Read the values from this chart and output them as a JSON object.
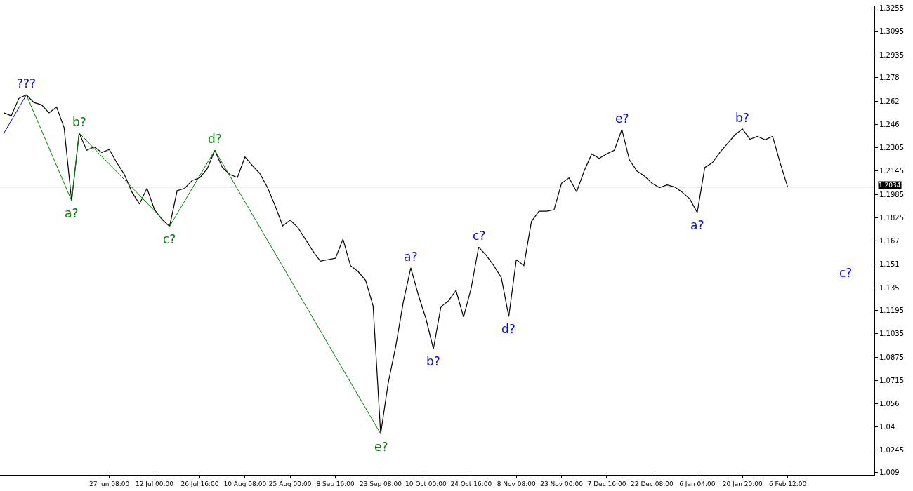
{
  "chart_data": {
    "type": "line",
    "grid": false,
    "marker": "none",
    "categories": [
      null,
      null,
      null,
      null,
      null,
      null,
      null,
      null,
      null,
      null,
      null,
      null,
      null,
      null,
      "27 Jun 08:00",
      null,
      null,
      null,
      null,
      null,
      "12 Jul 00:00",
      null,
      null,
      null,
      null,
      null,
      "26 Jul 16:00",
      null,
      null,
      null,
      null,
      null,
      "10 Aug 08:00",
      null,
      null,
      null,
      null,
      null,
      "25 Aug 00:00",
      null,
      null,
      null,
      null,
      null,
      "8 Sep 16:00",
      null,
      null,
      null,
      null,
      null,
      "23 Sep 08:00",
      null,
      null,
      null,
      null,
      null,
      "10 Oct 00:00",
      null,
      null,
      null,
      null,
      null,
      "24 Oct 16:00",
      null,
      null,
      null,
      null,
      null,
      "8 Nov 08:00",
      null,
      null,
      null,
      null,
      null,
      "23 Nov 00:00",
      null,
      null,
      null,
      null,
      null,
      "7 Dec 16:00",
      null,
      null,
      null,
      null,
      null,
      "22 Dec 08:00",
      null,
      null,
      null,
      null,
      null,
      "6 Jan 04:00",
      null,
      null,
      null,
      null,
      null,
      "20 Jan 20:00",
      null,
      null,
      null,
      null,
      null,
      "6 Feb 12:00",
      null,
      null,
      null,
      null,
      null,
      null,
      null,
      null,
      null,
      null,
      null
    ],
    "ylim": [
      1.0075,
      1.327
    ],
    "yticks": [
      1.3255,
      1.3095,
      1.2935,
      1.278,
      1.262,
      1.246,
      1.2305,
      1.2145,
      1.1985,
      1.1825,
      1.167,
      1.151,
      1.135,
      1.1195,
      1.1035,
      1.0875,
      1.0715,
      1.056,
      1.04,
      1.0245,
      1.009
    ],
    "series": [
      {
        "color": "#000000",
        "values": [
          1.254,
          1.252,
          1.2638,
          1.2662,
          1.261,
          1.2595,
          1.254,
          1.258,
          1.244,
          1.1941,
          1.2403,
          1.2285,
          1.2308,
          1.227,
          1.229,
          1.22,
          1.212,
          1.2,
          1.192,
          1.2026,
          1.188,
          1.1814,
          1.1767,
          1.201,
          1.2026,
          1.208,
          1.2097,
          1.216,
          1.2285,
          1.2167,
          1.212,
          1.21,
          1.224,
          1.218,
          1.2125,
          1.203,
          1.1908,
          1.177,
          1.181,
          1.176,
          1.168,
          1.16,
          1.153,
          1.154,
          1.155,
          1.168,
          1.15,
          1.146,
          1.14,
          1.1225,
          1.0354,
          1.07,
          1.095,
          1.125,
          1.1484,
          1.13,
          1.114,
          1.0933,
          1.122,
          1.126,
          1.133,
          1.115,
          1.1343,
          1.1626,
          1.157,
          1.15,
          1.142,
          1.1154,
          1.154,
          1.15,
          1.18,
          1.187,
          1.187,
          1.188,
          1.206,
          1.2097,
          1.2002,
          1.2144,
          1.226,
          1.223,
          1.2261,
          1.2285,
          1.2426,
          1.222,
          1.2144,
          1.211,
          1.206,
          1.203,
          1.2049,
          1.2035,
          1.2,
          1.1955,
          1.1861,
          1.2167,
          1.22,
          1.227,
          1.233,
          1.239,
          1.243,
          1.236,
          1.238,
          1.2356,
          1.238,
          1.22,
          1.2034,
          null,
          null,
          null,
          null,
          null,
          null,
          null,
          null,
          null,
          null,
          null
        ]
      },
      {
        "color": "#0000ff",
        "values": [
          1.24,
          null,
          null,
          1.2662,
          null,
          null,
          null,
          null,
          null,
          null,
          null,
          null,
          null,
          null,
          null,
          null,
          null,
          null,
          null,
          null,
          null,
          null,
          null,
          null,
          null,
          null,
          null,
          null,
          null,
          null,
          null,
          null,
          null,
          null,
          null,
          null,
          null,
          null,
          null,
          null,
          null,
          null,
          null,
          null,
          null,
          null,
          null,
          null,
          null,
          null,
          null,
          null,
          null,
          null,
          null,
          null,
          null,
          null,
          null,
          null,
          null,
          null,
          null,
          null,
          null,
          null,
          null,
          null,
          null,
          null,
          null,
          null,
          null,
          null,
          null,
          null,
          null,
          null,
          null,
          null,
          null,
          null,
          null,
          null,
          null,
          null,
          null,
          null,
          null,
          null,
          null,
          null,
          null,
          null,
          null,
          null,
          null,
          null,
          null,
          null,
          null,
          null,
          null,
          null,
          null,
          null,
          null,
          null,
          null,
          null,
          null,
          null,
          null,
          null,
          null,
          null
        ]
      },
      {
        "color": "#008000",
        "values": [
          null,
          null,
          null,
          1.2662,
          null,
          null,
          null,
          null,
          null,
          1.1941,
          1.2403,
          null,
          null,
          null,
          null,
          null,
          null,
          null,
          null,
          null,
          null,
          null,
          1.1767,
          null,
          null,
          null,
          null,
          null,
          1.2285,
          null,
          null,
          null,
          null,
          null,
          null,
          null,
          null,
          null,
          null,
          null,
          null,
          null,
          null,
          null,
          null,
          null,
          null,
          null,
          null,
          null,
          1.0354,
          null,
          null,
          null,
          null,
          null,
          null,
          null,
          null,
          null,
          null,
          null,
          null,
          null,
          null,
          null,
          null,
          null,
          null,
          null,
          null,
          null,
          null,
          null,
          null,
          null,
          null,
          null,
          null,
          null,
          null,
          null,
          null,
          null,
          null,
          null,
          null,
          null,
          null,
          null,
          null,
          null,
          null,
          null,
          null,
          null,
          null,
          null,
          null,
          null,
          null,
          null,
          null,
          null,
          null,
          null,
          null,
          null,
          null,
          null,
          null,
          null,
          null,
          null,
          null,
          null
        ]
      }
    ],
    "ref_lines": [
      {
        "axis": "y",
        "value": 1.2034,
        "label": "1.2034",
        "color": "#c0c0c0"
      }
    ],
    "annotations": [
      {
        "text": "???",
        "y": 1.2662
      },
      {
        "text": "a?",
        "y": 1.1941
      },
      {
        "text": "b?",
        "y": 1.2403
      },
      {
        "text": "c?",
        "y": 1.1767
      },
      {
        "text": "d?",
        "y": 1.2285
      },
      {
        "text": "e?",
        "y": 1.0354
      },
      {
        "text": "a?",
        "y": 1.1484
      },
      {
        "text": "b?",
        "y": 1.0933
      },
      {
        "text": "c?",
        "y": 1.1626
      },
      {
        "text": "d?",
        "y": 1.1154
      },
      {
        "text": "e?",
        "y": 1.2426
      },
      {
        "text": "a?",
        "y": 1.1861
      },
      {
        "text": "b?",
        "y": 1.243
      },
      "c?"
    ]
  }
}
